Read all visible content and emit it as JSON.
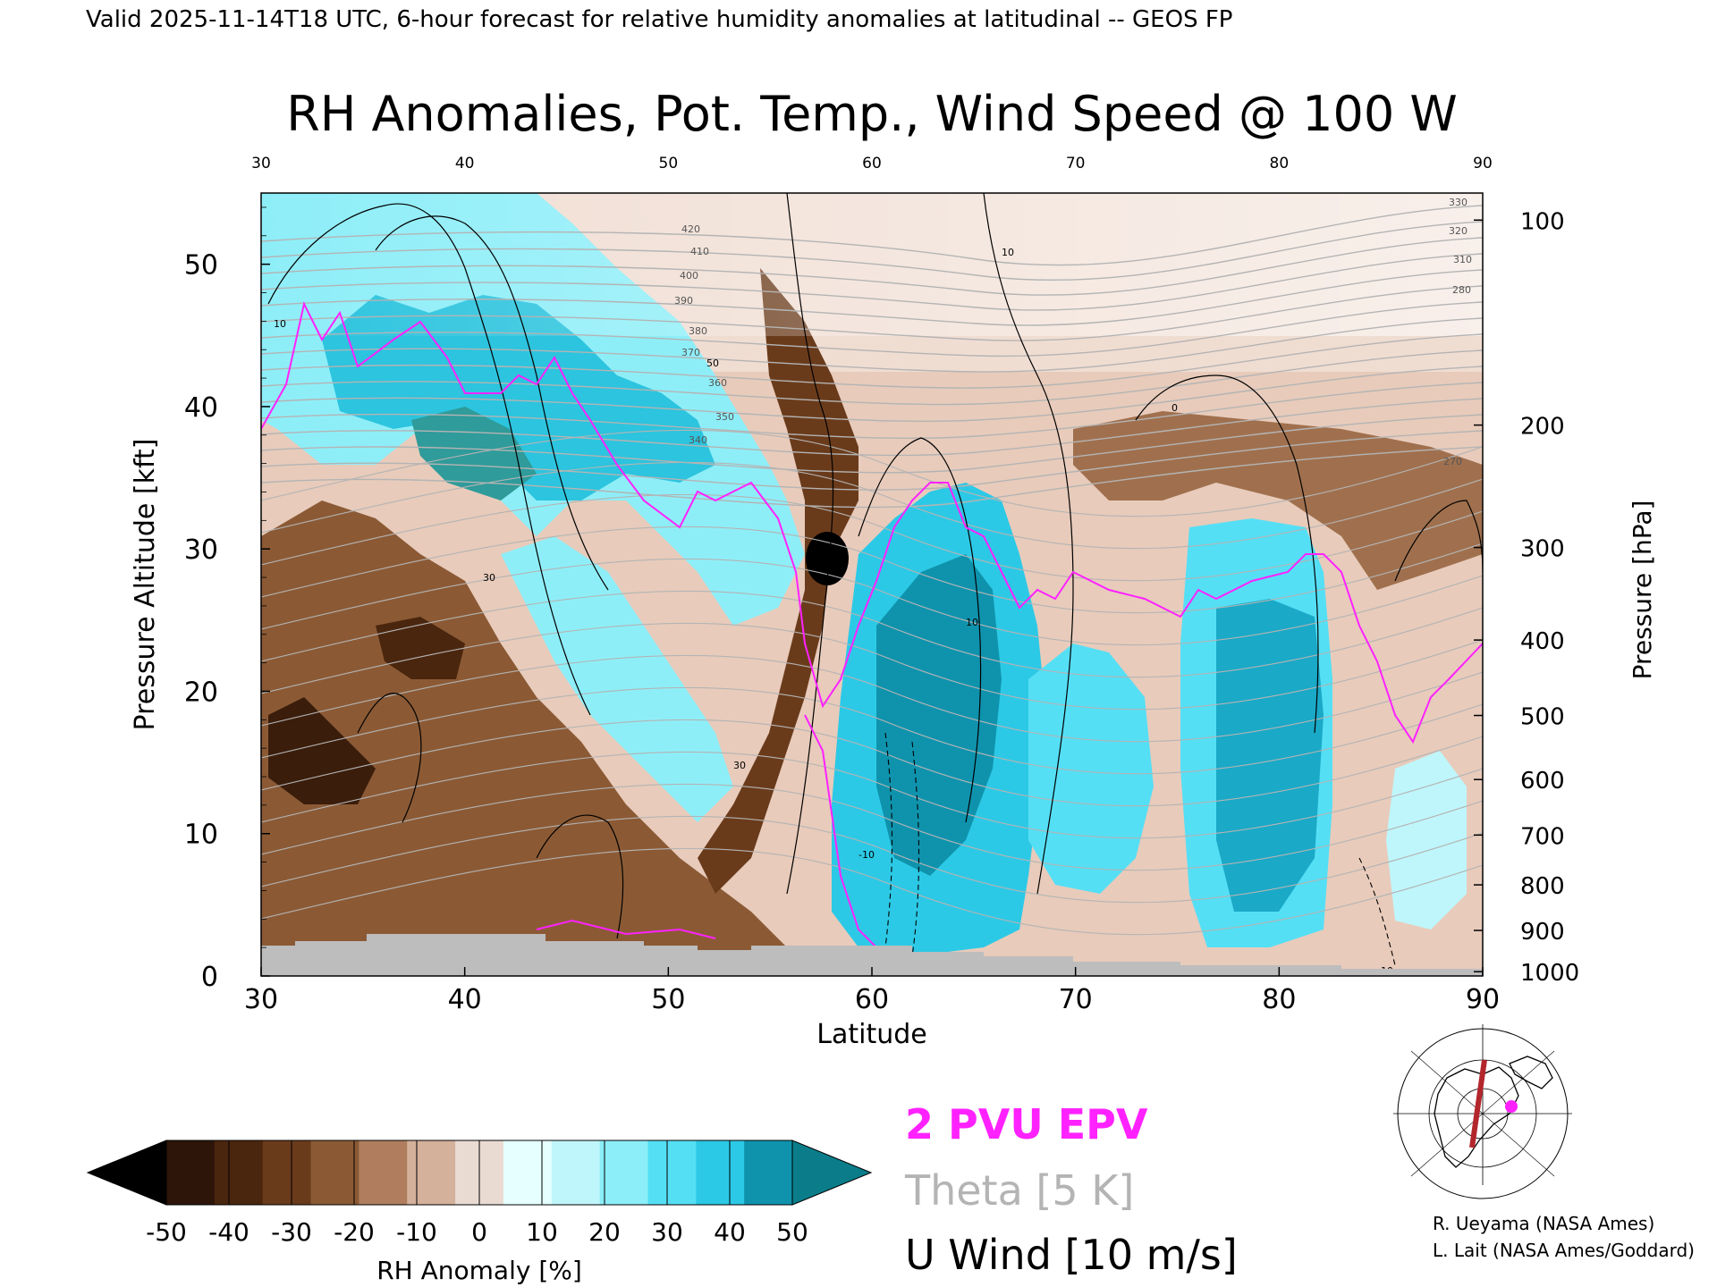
{
  "header": {
    "valid_line": "Valid 2025-11-14T18 UTC, 6-hour forecast for relative humidity anomalies at latitudinal -- GEOS FP",
    "title": "RH Anomalies, Pot. Temp., Wind Speed @ 100 W"
  },
  "chart_data": {
    "type": "heatmap",
    "title": "RH Anomalies, Pot. Temp., Wind Speed @ 100 W",
    "xlabel": "Latitude",
    "ylabel_left": "Pressure Altitude [kft]",
    "ylabel_right": "Pressure [hPa]",
    "xlim": [
      30,
      90
    ],
    "ylim": [
      0,
      55
    ],
    "x_ticks": [
      30,
      40,
      50,
      60,
      70,
      80,
      90
    ],
    "y_ticks": [
      0,
      10,
      20,
      30,
      40,
      50
    ],
    "pressure_ticks": [
      {
        "label": "100",
        "kft": 53.1
      },
      {
        "label": "200",
        "kft": 38.7
      },
      {
        "label": "300",
        "kft": 30.1
      },
      {
        "label": "400",
        "kft": 23.6
      },
      {
        "label": "500",
        "kft": 18.3
      },
      {
        "label": "600",
        "kft": 13.8
      },
      {
        "label": "700",
        "kft": 9.9
      },
      {
        "label": "800",
        "kft": 6.4
      },
      {
        "label": "900",
        "kft": 3.2
      },
      {
        "label": "1000",
        "kft": 0.3
      }
    ],
    "theta_labels": [
      "420",
      "410",
      "400",
      "390",
      "380",
      "370",
      "360",
      "350",
      "340",
      "330",
      "320",
      "310",
      "280",
      "270"
    ],
    "wind_labels": [
      "10",
      "30",
      "50",
      "0",
      "-10"
    ],
    "colorbar": {
      "label": "RH Anomaly [%]",
      "ticks": [
        "-50",
        "-40",
        "-30",
        "-20",
        "-10",
        "0",
        "10",
        "20",
        "30",
        "40",
        "50"
      ],
      "colors": [
        "#000000",
        "#2d150a",
        "#4b260e",
        "#6a3b1b",
        "#8b5a35",
        "#b07e5e",
        "#d4b19b",
        "#eadbd2",
        "#e6ffff",
        "#bff6fb",
        "#8beef8",
        "#55dff5",
        "#2cc9e6",
        "#0f93ad",
        "#0b7d8a"
      ]
    },
    "legend": {
      "epv": "2 PVU EPV",
      "theta": "Theta [5 K]",
      "wind": "U Wind [10 m/s]",
      "epv_color": "#ff22ff",
      "theta_color": "#b4b4b4",
      "wind_color": "#000000"
    }
  },
  "credits": {
    "line1": "R. Ueyama (NASA Ames)",
    "line2": "L. Lait (NASA Ames/Goddard)"
  }
}
